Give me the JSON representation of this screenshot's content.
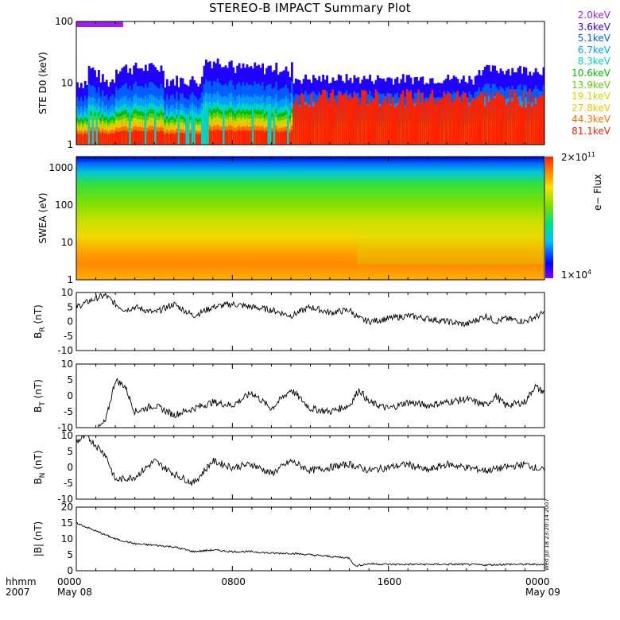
{
  "title": "STEREO-B IMPACT Summary Plot",
  "chart_data": [
    {
      "type": "line",
      "panel": "ste",
      "ylabel": "STE D0 (keV)",
      "yscale": "log",
      "ylim": [
        1,
        100
      ],
      "yticks": [
        "1",
        "10",
        "100"
      ],
      "series": [
        {
          "name": "2.0keV",
          "color": "#a020f0"
        },
        {
          "name": "3.6keV",
          "color": "#2000ff"
        },
        {
          "name": "5.1keV",
          "color": "#0060ff"
        },
        {
          "name": "6.7keV",
          "color": "#00a0ff"
        },
        {
          "name": "8.3keV",
          "color": "#00d8c0"
        },
        {
          "name": "10.6keV",
          "color": "#00c000"
        },
        {
          "name": "13.9keV",
          "color": "#60d000"
        },
        {
          "name": "19.1keV",
          "color": "#d0d800"
        },
        {
          "name": "27.8keV",
          "color": "#ffc000"
        },
        {
          "name": "44.3keV",
          "color": "#ff7000"
        },
        {
          "name": "81.1keV",
          "color": "#ff2000"
        }
      ]
    },
    {
      "type": "heatmap",
      "panel": "swea",
      "ylabel": "SWEA (eV)",
      "yscale": "log",
      "ylim": [
        1,
        2000
      ],
      "yticks": [
        "1",
        "10",
        "100",
        "1000"
      ],
      "colorbar": {
        "label": "e− Flux",
        "max": "2×10",
        "max_exp": "11",
        "min": "1×10",
        "min_exp": "4"
      }
    },
    {
      "type": "line",
      "panel": "br",
      "ylabel": "B",
      "ysub": "R",
      "yunit": "(nT)",
      "ylim": [
        -10,
        10
      ],
      "yticks": [
        "-10",
        "-5",
        "0",
        "5",
        "10"
      ],
      "x": [
        0,
        1,
        1.5,
        2,
        2.5,
        3,
        4,
        5,
        6,
        7,
        8,
        9,
        10,
        11,
        12,
        13,
        14,
        14.5,
        15,
        16,
        17,
        18,
        19,
        20,
        21,
        21.5,
        22,
        23,
        24
      ],
      "values": [
        5,
        8,
        9,
        6,
        4,
        5,
        3,
        6,
        2,
        5,
        6,
        5,
        4,
        2,
        5,
        3,
        4,
        1,
        0,
        1,
        2,
        1,
        0,
        -1,
        2,
        0,
        1,
        0,
        3
      ]
    },
    {
      "type": "line",
      "panel": "bt",
      "ylabel": "B",
      "ysub": "T",
      "yunit": "(nT)",
      "ylim": [
        -10,
        10
      ],
      "yticks": [
        "-10",
        "-5",
        "0",
        "5",
        "10"
      ],
      "x": [
        0,
        1,
        1.5,
        2,
        2.5,
        3,
        4,
        5,
        6,
        7,
        8,
        9,
        10,
        11,
        12,
        13,
        14,
        14.5,
        15,
        16,
        17,
        18,
        19,
        20,
        21,
        21.5,
        22,
        23,
        23.5,
        24
      ],
      "values": [
        -11,
        -11,
        -8,
        5,
        3,
        -5,
        -3,
        -6,
        -4,
        -2,
        -3,
        1,
        -4,
        2,
        -4,
        -5,
        -3,
        2,
        -2,
        -4,
        -2,
        -3,
        -2,
        -1,
        -3,
        0,
        -3,
        -2,
        3,
        1
      ]
    },
    {
      "type": "line",
      "panel": "bn",
      "ylabel": "B",
      "ysub": "N",
      "yunit": "(nT)",
      "ylim": [
        -10,
        10
      ],
      "yticks": [
        "-10",
        "-5",
        "0",
        "5",
        "10"
      ],
      "x": [
        0,
        0.5,
        1,
        1.5,
        2,
        3,
        4,
        5,
        6,
        7,
        8,
        9,
        10,
        11,
        12,
        13,
        14,
        15,
        16,
        17,
        18,
        19,
        20,
        21,
        22,
        23,
        24
      ],
      "values": [
        8,
        10,
        7,
        4,
        -4,
        -3,
        2,
        -2,
        -5,
        2,
        0,
        1,
        -2,
        2,
        -1,
        0,
        1,
        -1,
        0,
        1,
        -1,
        1,
        0,
        -1,
        0,
        1,
        -1
      ]
    },
    {
      "type": "line",
      "panel": "bmag",
      "ylabel": "|B| (nT)",
      "ylim": [
        0,
        20
      ],
      "yticks": [
        "0",
        "5",
        "10",
        "15",
        "20"
      ],
      "x": [
        0,
        1,
        2,
        3,
        4,
        5,
        6,
        7,
        8,
        9,
        10,
        11,
        12,
        13,
        14,
        14.3,
        15,
        16,
        17,
        18,
        19,
        20,
        21,
        22,
        23,
        24
      ],
      "values": [
        15,
        12.5,
        10,
        8.5,
        8,
        7.5,
        6,
        6.5,
        6,
        6,
        5.5,
        5.5,
        5,
        4.5,
        4,
        1.5,
        2.2,
        2,
        2,
        2,
        2,
        2,
        1.8,
        2,
        2,
        2
      ]
    }
  ],
  "xaxis": {
    "label_row1": "hhmm",
    "label_row2": "2007",
    "ticks": [
      {
        "x": 0,
        "time": "0000",
        "date": "May 08"
      },
      {
        "x": 8,
        "time": "0800",
        "date": ""
      },
      {
        "x": 16,
        "time": "1600",
        "date": ""
      },
      {
        "x": 24,
        "time": "0000",
        "date": "May 09"
      }
    ]
  },
  "stamp": "Wed Jul 18 23:20:14 2007"
}
